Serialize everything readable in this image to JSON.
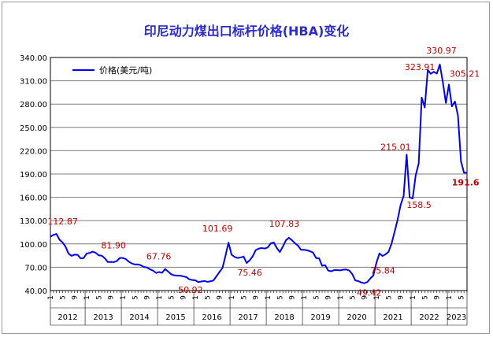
{
  "chart_data": {
    "type": "line",
    "title": "印尼动力煤出口标杆价格(HBA)变化",
    "ylim": [
      40,
      340
    ],
    "yticks": [
      "40.00",
      "70.00",
      "100.00",
      "130.00",
      "160.00",
      "190.00",
      "220.00",
      "250.00",
      "280.00",
      "310.00",
      "340.00"
    ],
    "ytick_values": [
      40,
      70,
      100,
      130,
      160,
      190,
      220,
      250,
      280,
      310,
      340
    ],
    "grid": true,
    "legend_position": "top-left",
    "line_color": "#0000ee",
    "label_color": "#c00000",
    "month_ticks": [
      "1",
      "5",
      "9"
    ],
    "years": [
      "2012",
      "2013",
      "2014",
      "2015",
      "2016",
      "2017",
      "2018",
      "2019",
      "2020",
      "2021",
      "2022",
      "2023"
    ],
    "series": [
      {
        "name": "价格(美元/吨)",
        "values": [
          109.29,
          111.58,
          112.87,
          105.61,
          102.12,
          96.65,
          87.56,
          84.65,
          86.21,
          86.04,
          81.44,
          81.75,
          87.55,
          88.35,
          90.09,
          88.56,
          85.33,
          84.87,
          81.69,
          76.7,
          76.89,
          76.61,
          78.07,
          81.9,
          81.9,
          80.44,
          77.01,
          74.81,
          73.6,
          73.64,
          72.45,
          70.29,
          69.69,
          67.26,
          65.7,
          62.65,
          63.84,
          62.92,
          67.76,
          64.48,
          61.08,
          59.59,
          59.16,
          59.14,
          58.21,
          57.39,
          54.43,
          53.51,
          53.2,
          50.92,
          51.62,
          52.32,
          51.2,
          51.87,
          53.0,
          58.37,
          63.93,
          69.07,
          84.89,
          101.69,
          86.23,
          83.32,
          81.9,
          82.51,
          83.81,
          75.46,
          78.95,
          83.97,
          92.03,
          93.99,
          94.8,
          94.04,
          95.54,
          100.69,
          101.86,
          94.75,
          89.53,
          96.61,
          104.65,
          107.83,
          104.81,
          100.89,
          97.9,
          92.51,
          92.41,
          91.8,
          90.57,
          88.85,
          81.86,
          81.48,
          71.92,
          72.67,
          65.79,
          64.8,
          66.27,
          66.3,
          65.93,
          66.89,
          67.08,
          65.77,
          61.11,
          52.98,
          52.16,
          50.34,
          49.42,
          51.0,
          55.71,
          59.65,
          75.84,
          87.79,
          84.47,
          86.68,
          89.74,
          100.33,
          115.35,
          130.99,
          150.03,
          161.63,
          215.01,
          159.79,
          158.5,
          188.38,
          203.69,
          288.4,
          275.64,
          323.91,
          319.0,
          321.59,
          319.22,
          330.97,
          308.2,
          281.48,
          305.21,
          277.05,
          283.37,
          265.26,
          206.53,
          191.6,
          191.6
        ]
      }
    ],
    "annotations": [
      {
        "index": 2,
        "text": "112.87"
      },
      {
        "index": 23,
        "text": "81.90"
      },
      {
        "index": 38,
        "text": "67.76"
      },
      {
        "index": 49,
        "text": "50.92"
      },
      {
        "index": 59,
        "text": "101.69"
      },
      {
        "index": 65,
        "text": "75.46"
      },
      {
        "index": 79,
        "text": "107.83"
      },
      {
        "index": 104,
        "text": "49.42"
      },
      {
        "index": 108,
        "text": "75.84"
      },
      {
        "index": 118,
        "text": "215.01"
      },
      {
        "index": 120,
        "text": "158.5"
      },
      {
        "index": 125,
        "text": "323.91"
      },
      {
        "index": 129,
        "text": "330.97"
      },
      {
        "index": 132,
        "text": "305.21"
      },
      {
        "index": 137,
        "text": "191.6"
      }
    ]
  }
}
